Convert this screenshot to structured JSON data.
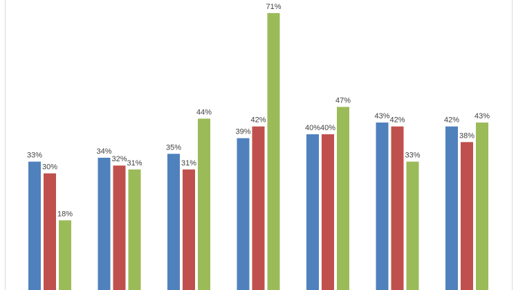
{
  "chart_data": {
    "type": "bar",
    "categories": [
      "",
      "",
      "",
      "",
      "",
      "",
      ""
    ],
    "series": [
      {
        "color": "#4f81bd",
        "values": [
          33,
          34,
          35,
          39,
          40,
          43,
          42
        ],
        "labels": [
          "33%",
          "34%",
          "35%",
          "39%",
          "40%",
          "43%",
          "42%"
        ]
      },
      {
        "color": "#c0504d",
        "values": [
          30,
          32,
          31,
          42,
          40,
          42,
          38
        ],
        "labels": [
          "30%",
          "32%",
          "31%",
          "42%",
          "40%",
          "42%",
          "38%"
        ]
      },
      {
        "color": "#9bbb59",
        "values": [
          18,
          31,
          44,
          71,
          47,
          33,
          43
        ],
        "labels": [
          "18%",
          "31%",
          "44%",
          "71%",
          "47%",
          "33%",
          "43%"
        ]
      }
    ],
    "ylim": [
      0,
      72
    ],
    "grid": false,
    "data_labels": true,
    "title": "",
    "xlabel": "",
    "ylabel": ""
  }
}
